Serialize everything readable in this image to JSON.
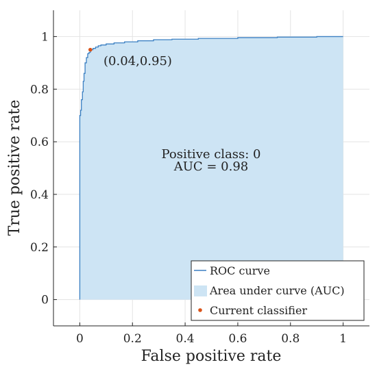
{
  "chart_data": {
    "type": "area",
    "xlabel": "False positive rate",
    "ylabel": "True positive rate",
    "xlim": [
      -0.1,
      1.1
    ],
    "ylim": [
      -0.1,
      1.1
    ],
    "x_ticks": [
      0,
      0.2,
      0.4,
      0.6,
      0.8,
      1
    ],
    "y_ticks": [
      0,
      0.2,
      0.4,
      0.6,
      0.8,
      1
    ],
    "x_tick_labels": [
      "0",
      "0.2",
      "0.4",
      "0.6",
      "0.8",
      "1"
    ],
    "y_tick_labels": [
      "0",
      "0.2",
      "0.4",
      "0.6",
      "0.8",
      "1"
    ],
    "grid": true,
    "legend_position": "bottom-right",
    "series": [
      {
        "name": "ROC curve",
        "kind": "line",
        "color": "#3a7fc2",
        "x": [
          0,
          0,
          0.003,
          0.003,
          0.006,
          0.006,
          0.01,
          0.01,
          0.013,
          0.013,
          0.016,
          0.016,
          0.02,
          0.02,
          0.025,
          0.025,
          0.03,
          0.03,
          0.035,
          0.035,
          0.04,
          0.04,
          0.05,
          0.05,
          0.06,
          0.06,
          0.07,
          0.07,
          0.08,
          0.08,
          0.1,
          0.1,
          0.13,
          0.13,
          0.17,
          0.17,
          0.22,
          0.22,
          0.28,
          0.28,
          0.35,
          0.35,
          0.45,
          0.45,
          0.6,
          0.6,
          0.75,
          0.75,
          0.9,
          0.9,
          1
        ],
        "y": [
          0,
          0.7,
          0.7,
          0.72,
          0.72,
          0.76,
          0.76,
          0.79,
          0.79,
          0.83,
          0.83,
          0.86,
          0.86,
          0.9,
          0.9,
          0.92,
          0.92,
          0.935,
          0.935,
          0.94,
          0.94,
          0.95,
          0.95,
          0.955,
          0.955,
          0.96,
          0.96,
          0.965,
          0.965,
          0.968,
          0.968,
          0.972,
          0.972,
          0.976,
          0.976,
          0.98,
          0.98,
          0.984,
          0.984,
          0.988,
          0.988,
          0.99,
          0.99,
          0.993,
          0.993,
          0.996,
          0.996,
          0.998,
          0.998,
          1,
          1
        ]
      },
      {
        "name": "Area under curve (AUC)",
        "kind": "area",
        "color": "#cde4f4"
      },
      {
        "name": "Current classifier",
        "kind": "point",
        "color": "#d95319",
        "x": [
          0.04
        ],
        "y": [
          0.95
        ]
      }
    ],
    "annotations": {
      "point_label": "(0.04,0.95)",
      "class_line": "Positive class: 0",
      "auc_line": "AUC = 0.98"
    }
  }
}
